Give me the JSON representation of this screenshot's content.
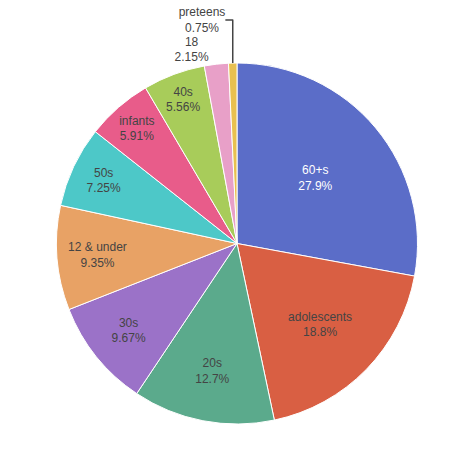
{
  "chart_data": {
    "type": "pie",
    "categories": [
      "60+s",
      "adolescents",
      "20s",
      "30s",
      "12 & under",
      "50s",
      "infants",
      "40s",
      "18",
      "preteens"
    ],
    "values": [
      27.9,
      18.8,
      12.7,
      9.67,
      9.35,
      7.25,
      5.91,
      5.56,
      2.15,
      0.75
    ],
    "value_labels": [
      "27.9%",
      "18.8%",
      "12.7%",
      "9.67%",
      "9.35%",
      "7.25%",
      "5.91%",
      "5.56%",
      "2.15%",
      "0.75%"
    ],
    "colors": [
      "#5B6DC8",
      "#D95F43",
      "#5BAA8C",
      "#9B72C8",
      "#E8A265",
      "#4DC8C8",
      "#E85C8A",
      "#A8CC5A",
      "#E8A0C8",
      "#E8C050"
    ],
    "data_labels": true
  }
}
